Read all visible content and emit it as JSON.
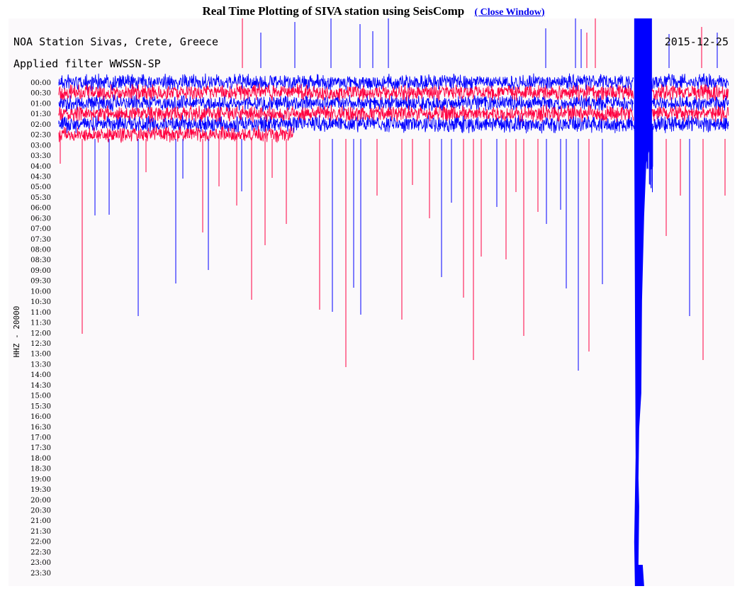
{
  "header": {
    "title": "Real Time Plotting of SIVA station using SeisComp",
    "close_label": "( Close Window)"
  },
  "plot": {
    "station": "NOA Station Sivas, Crete, Greece",
    "date": "2015-12-25",
    "filter": "Applied filter WWSSN-SP",
    "channel": "HHZ - 20000"
  },
  "colors": {
    "blue": "#0000ff",
    "red": "#ff0040",
    "background": "#fbf9fb"
  },
  "chart_data": {
    "type": "line",
    "title": "NOA Station Sivas, Crete, Greece",
    "ylabel": "HHZ - 20000",
    "y_tick_labels": [
      "00:00",
      "00:30",
      "01:00",
      "01:30",
      "02:00",
      "02:30",
      "03:00",
      "03:30",
      "04:00",
      "04:30",
      "05:00",
      "05:30",
      "06:00",
      "06:30",
      "07:00",
      "07:30",
      "08:00",
      "08:30",
      "09:00",
      "09:30",
      "10:00",
      "10:30",
      "11:00",
      "11:30",
      "12:00",
      "12:30",
      "13:00",
      "13:30",
      "14:00",
      "14:30",
      "15:00",
      "15:30",
      "16:00",
      "16:30",
      "17:00",
      "17:30",
      "18:00",
      "18:30",
      "19:00",
      "19:30",
      "20:00",
      "20:30",
      "21:00",
      "21:30",
      "22:00",
      "22:30",
      "23:00",
      "23:30"
    ],
    "series": [
      {
        "color": "#0000ff",
        "traces": [
          "00:00",
          "01:00",
          "02:00"
        ]
      },
      {
        "color": "#ff0040",
        "traces": [
          "00:30",
          "01:30",
          "02:30"
        ]
      }
    ],
    "x_unit": "minutes within trace row",
    "x_range": [
      0,
      30
    ],
    "data_ends_after_time": "02:30",
    "data_ends_at_minute": 10.5,
    "event": {
      "time": "02:00",
      "minute": 25.9,
      "extends_to": "23:30"
    },
    "grid": false
  }
}
